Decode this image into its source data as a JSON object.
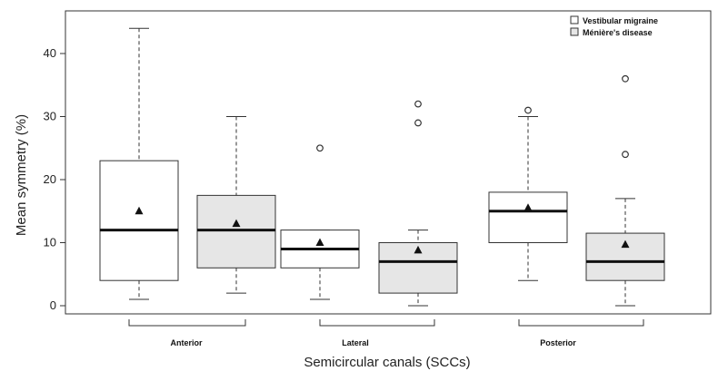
{
  "chart_data": {
    "type": "boxplot",
    "title": "",
    "xlabel": "Semicircular canals (SCCs)",
    "ylabel": "Mean symmetry (%)",
    "ylim": [
      0,
      45
    ],
    "yticks": [
      0,
      10,
      20,
      30,
      40
    ],
    "categories": [
      "Anterior",
      "Lateral",
      "Posterior"
    ],
    "legend_position": "top-right",
    "colors": {
      "Vestibular migraine": "#ffffff",
      "Ménière's disease": "#e6e6e6"
    },
    "series": [
      {
        "name": "Vestibular migraine",
        "boxes": [
          {
            "category": "Anterior",
            "whisker_low": 1,
            "q1": 4,
            "median": 12,
            "q3": 23,
            "whisker_high": 44,
            "mean": 15,
            "outliers": []
          },
          {
            "category": "Lateral",
            "whisker_low": 1,
            "q1": 6,
            "median": 9,
            "q3": 12,
            "whisker_high": 12,
            "mean": 10,
            "outliers": [
              25
            ]
          },
          {
            "category": "Posterior",
            "whisker_low": 4,
            "q1": 10,
            "median": 15,
            "q3": 18,
            "whisker_high": 30,
            "mean": 15.5,
            "outliers": [
              31
            ]
          }
        ]
      },
      {
        "name": "Ménière's disease",
        "boxes": [
          {
            "category": "Anterior",
            "whisker_low": 2,
            "q1": 6,
            "median": 12,
            "q3": 17.5,
            "whisker_high": 30,
            "mean": 13,
            "outliers": []
          },
          {
            "category": "Lateral",
            "whisker_low": 0,
            "q1": 2,
            "median": 7,
            "q3": 10,
            "whisker_high": 12,
            "mean": 8.8,
            "outliers": [
              29,
              32
            ]
          },
          {
            "category": "Posterior",
            "whisker_low": 0,
            "q1": 4,
            "median": 7,
            "q3": 11.5,
            "whisker_high": 17,
            "mean": 9.7,
            "outliers": [
              24,
              36
            ]
          }
        ]
      }
    ]
  }
}
